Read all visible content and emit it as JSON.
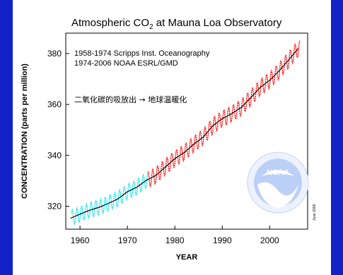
{
  "chart_data": {
    "type": "line",
    "title_main": "Atmospheric CO",
    "title_sub": "2",
    "title_rest": " at Mauna Loa Observatory",
    "xlabel": "YEAR",
    "ylabel": "CONCENTRATION (parts per million)",
    "xlim": [
      1957,
      2008
    ],
    "ylim": [
      311,
      388
    ],
    "x_ticks": [
      "1960",
      "1970",
      "1980",
      "1990",
      "2000"
    ],
    "y_ticks": [
      "320",
      "340",
      "360",
      "380"
    ],
    "legend_lines": [
      "1958-1974 Scripps Inst. Oceanography",
      "1974-2006 NOAA ESRL/GMD"
    ],
    "annotation": "二氧化碳的吸放出 → 地球温暖化",
    "credit": "June 2006",
    "logo_text": "NOAA",
    "series": [
      {
        "name": "Scripps Inst. Oceanography (monthly)",
        "color": "#19e6f0",
        "x_start": 1958.2,
        "x_end": 1974.4,
        "seasonal_amplitude": 3.0
      },
      {
        "name": "NOAA ESRL/GMD (monthly)",
        "color": "#ff1a1a",
        "x_start": 1974.4,
        "x_end": 2006.4,
        "seasonal_amplitude": 3.2
      },
      {
        "name": "Annual trend",
        "color": "#000000",
        "x": [
          1958,
          1960,
          1962,
          1964,
          1966,
          1968,
          1970,
          1972,
          1974,
          1976,
          1978,
          1980,
          1982,
          1984,
          1986,
          1988,
          1990,
          1992,
          1994,
          1996,
          1998,
          2000,
          2002,
          2004,
          2006
        ],
        "values": [
          315.3,
          316.9,
          318.4,
          319.6,
          321.1,
          322.9,
          325.7,
          327.5,
          330.2,
          332.1,
          335.4,
          338.7,
          341.1,
          344.4,
          347.2,
          351.6,
          354.4,
          356.4,
          358.8,
          362.6,
          366.7,
          369.5,
          373.2,
          377.5,
          381.9
        ]
      }
    ]
  }
}
